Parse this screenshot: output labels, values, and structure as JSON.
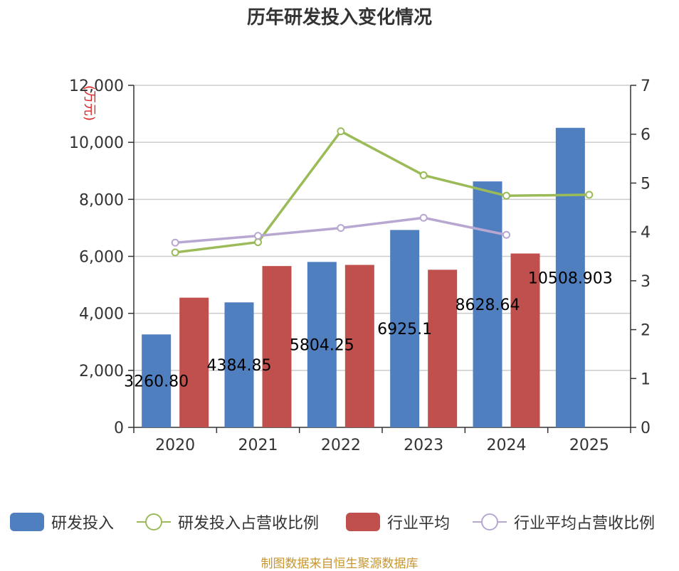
{
  "chart_data": {
    "type": "bar",
    "title": "历年研发投入变化情况",
    "ylabel": "(万元)",
    "categories": [
      "2020",
      "2021",
      "2022",
      "2023",
      "2024",
      "2025"
    ],
    "ylim": [
      0,
      12000
    ],
    "y_ticks": [
      "0",
      "2,000",
      "4,000",
      "6,000",
      "8,000",
      "10,000",
      "12,000"
    ],
    "y2lim": [
      0,
      7
    ],
    "y2_ticks": [
      "0",
      "1",
      "2",
      "3",
      "4",
      "5",
      "6",
      "7"
    ],
    "grid": true,
    "legend_position": "bottom",
    "series": [
      {
        "name": "研发投入",
        "kind": "bar",
        "color": "#4f7fbf",
        "values": [
          3260.8,
          4384.85,
          5804.25,
          6925.1,
          8628.64,
          10508.903
        ],
        "labels": [
          "3260.80",
          "4384.85",
          "5804.25",
          "6925.1",
          "8628.64",
          "10508.903"
        ]
      },
      {
        "name": "行业平均",
        "kind": "bar",
        "color": "#c0504d",
        "values": [
          4550,
          5660,
          5700,
          5530,
          6100,
          null
        ]
      },
      {
        "name": "研发投入占营收比例",
        "kind": "line",
        "axis": "right",
        "color": "#9bbb59",
        "values": [
          3.58,
          3.79,
          6.06,
          5.16,
          4.74,
          4.76
        ]
      },
      {
        "name": "行业平均占营收比例",
        "kind": "line",
        "axis": "right",
        "color": "#b7a7d1",
        "values": [
          3.78,
          3.92,
          4.08,
          4.29,
          3.94,
          null
        ]
      }
    ]
  },
  "footer": "制图数据来自恒生聚源数据库"
}
